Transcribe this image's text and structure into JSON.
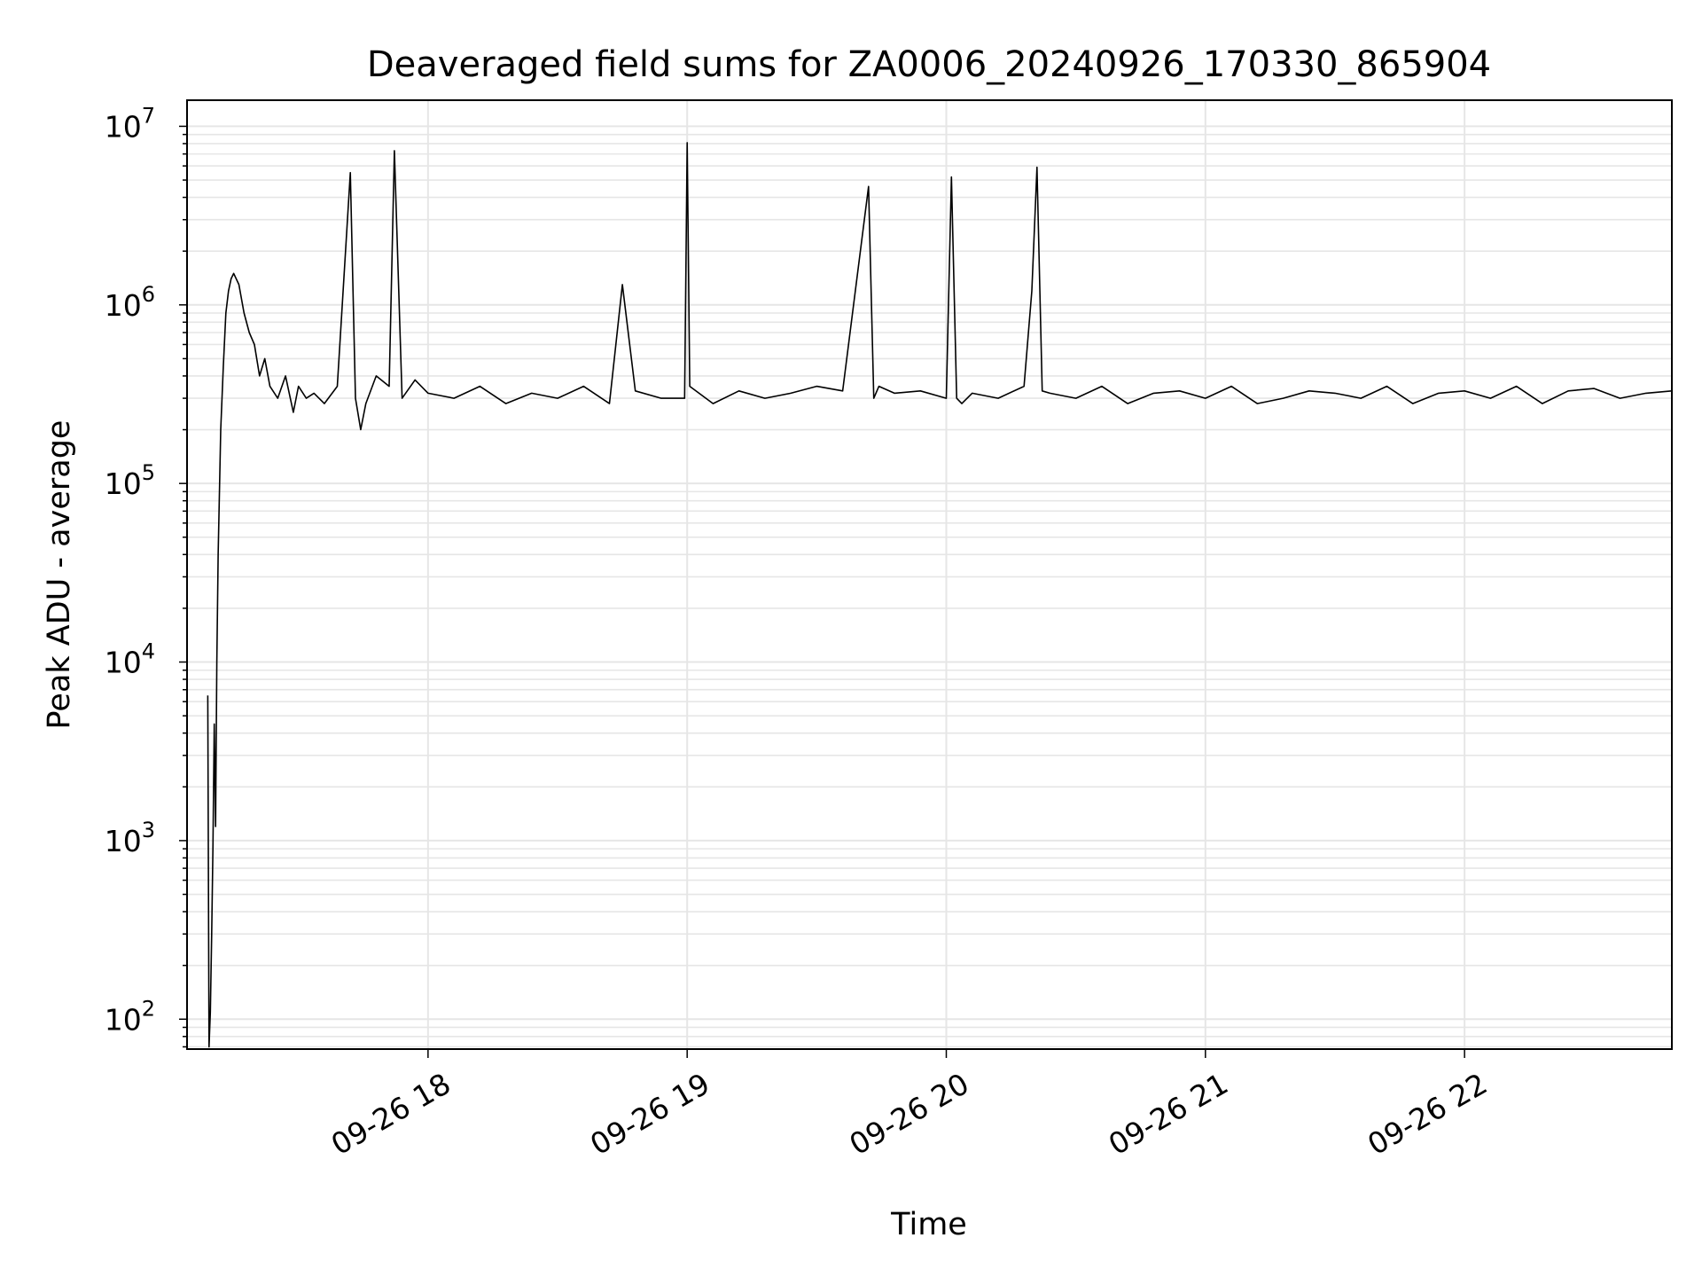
{
  "chart_data": {
    "type": "line",
    "title": "Deaveraged field sums for ZA0006_20240926_170330_865904",
    "xlabel": "Time",
    "ylabel": "Peak ADU - average",
    "yscale": "log",
    "ylim": [
      68,
      14000000
    ],
    "xlim_hours": [
      17.07,
      22.8
    ],
    "x_ticks": [
      "09-26 18",
      "09-26 19",
      "09-26 20",
      "09-26 21",
      "09-26 22"
    ],
    "y_ticks": [
      {
        "base": "10",
        "exp": "2"
      },
      {
        "base": "10",
        "exp": "3"
      },
      {
        "base": "10",
        "exp": "4"
      },
      {
        "base": "10",
        "exp": "5"
      },
      {
        "base": "10",
        "exp": "6"
      },
      {
        "base": "10",
        "exp": "7"
      }
    ],
    "grid": true,
    "line_color": "#000000",
    "series": [
      {
        "x": [
          17.15,
          17.155,
          17.16,
          17.165,
          17.17,
          17.175,
          17.18,
          17.185,
          17.19,
          17.2,
          17.21,
          17.22,
          17.23,
          17.24,
          17.25,
          17.27,
          17.29,
          17.31,
          17.33,
          17.35,
          17.37,
          17.39,
          17.42,
          17.45,
          17.48,
          17.5,
          17.53,
          17.56,
          17.6,
          17.65,
          17.7,
          17.72,
          17.74,
          17.76,
          17.8,
          17.85,
          17.87,
          17.9,
          17.95,
          18.0,
          18.1,
          18.2,
          18.3,
          18.4,
          18.5,
          18.6,
          18.7,
          18.75,
          18.8,
          18.9,
          18.99,
          19.0,
          19.01,
          19.1,
          19.2,
          19.3,
          19.4,
          19.5,
          19.6,
          19.7,
          19.72,
          19.74,
          19.8,
          19.9,
          20.0,
          20.02,
          20.04,
          20.06,
          20.1,
          20.2,
          20.3,
          20.33,
          20.35,
          20.37,
          20.4,
          20.5,
          20.6,
          20.7,
          20.8,
          20.9,
          21.0,
          21.1,
          21.2,
          21.3,
          21.4,
          21.5,
          21.6,
          21.7,
          21.8,
          21.9,
          22.0,
          22.1,
          22.2,
          22.3,
          22.4,
          22.5,
          22.6,
          22.7,
          22.8
        ],
        "values": [
          6500,
          70,
          110,
          300,
          900,
          4500,
          1200,
          10000,
          40000,
          200000,
          450000,
          900000,
          1200000,
          1400000,
          1500000,
          1300000,
          900000,
          700000,
          600000,
          400000,
          500000,
          350000,
          300000,
          400000,
          250000,
          350000,
          300000,
          320000,
          280000,
          350000,
          5500000,
          300000,
          200000,
          280000,
          400000,
          350000,
          7300000,
          300000,
          380000,
          320000,
          300000,
          350000,
          280000,
          320000,
          300000,
          350000,
          280000,
          1300000,
          330000,
          300000,
          300000,
          8100000,
          350000,
          280000,
          330000,
          300000,
          320000,
          350000,
          330000,
          4600000,
          300000,
          350000,
          320000,
          330000,
          300000,
          5200000,
          300000,
          280000,
          320000,
          300000,
          350000,
          1200000,
          5900000,
          330000,
          320000,
          300000,
          350000,
          280000,
          320000,
          330000,
          300000,
          350000,
          280000,
          300000,
          330000,
          320000,
          300000,
          350000,
          280000,
          320000,
          330000,
          300000,
          350000,
          280000,
          330000,
          340000,
          300000,
          320000,
          330000
        ]
      }
    ]
  }
}
